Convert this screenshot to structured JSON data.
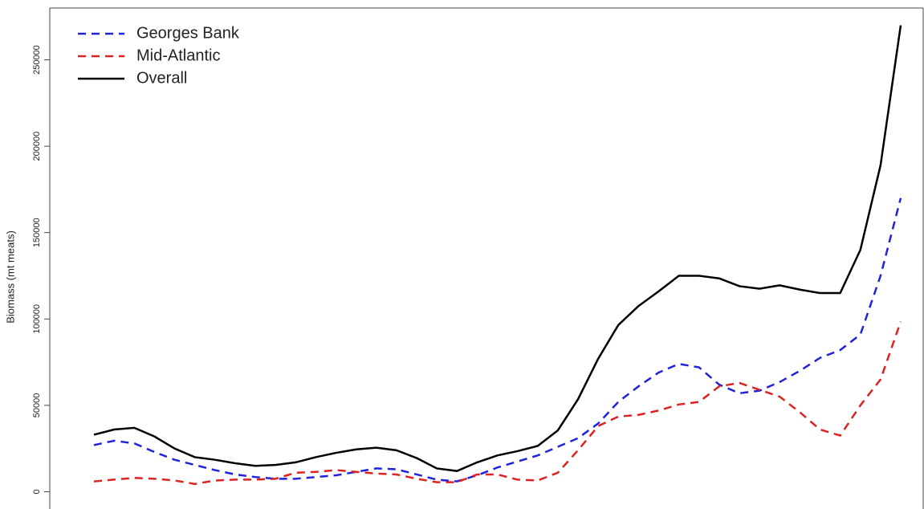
{
  "chart_data": {
    "type": "line",
    "y_label": "Biomass (mt meats)",
    "categories": [
      null,
      null,
      null,
      null,
      null,
      null,
      null,
      null,
      null,
      null,
      null,
      null,
      null,
      null,
      null,
      null,
      null,
      null,
      null,
      null,
      null,
      null,
      null,
      null,
      null,
      null,
      null,
      null,
      null,
      null,
      null,
      null,
      null,
      null,
      null,
      null,
      null,
      null,
      null,
      null,
      null
    ],
    "series": [
      {
        "name": "Georges Bank",
        "color": "#2222dd",
        "dash": true,
        "values": [
          27000,
          29500,
          28000,
          23000,
          18500,
          15500,
          12500,
          10000,
          8500,
          7500,
          7500,
          8500,
          9500,
          11500,
          13500,
          13000,
          10000,
          7000,
          6000,
          9500,
          14000,
          17500,
          21000,
          26000,
          31000,
          39500,
          52000,
          61000,
          69000,
          74000,
          72000,
          62000,
          57000,
          58500,
          63500,
          70000,
          77500,
          82000,
          91000,
          125000,
          170000
        ]
      },
      {
        "name": "Mid-Atlantic",
        "color": "#dd2222",
        "dash": true,
        "values": [
          6000,
          7000,
          8000,
          7500,
          6500,
          4500,
          6500,
          7000,
          7000,
          7500,
          11000,
          11500,
          12500,
          11500,
          10500,
          10000,
          7500,
          5500,
          5500,
          10000,
          10000,
          7000,
          6500,
          11000,
          24000,
          38000,
          43500,
          44500,
          47000,
          50500,
          52000,
          61000,
          63000,
          59000,
          55000,
          46000,
          36000,
          32500,
          50000,
          65000,
          98500
        ]
      },
      {
        "name": "Overall",
        "color": "#000000",
        "dash": false,
        "values": [
          33000,
          36000,
          37000,
          32000,
          25000,
          20000,
          18500,
          16500,
          15000,
          15500,
          17000,
          20000,
          22500,
          24500,
          25500,
          24000,
          19500,
          13500,
          12000,
          17000,
          21000,
          23500,
          26500,
          35500,
          53500,
          77000,
          96500,
          107500,
          116000,
          125000,
          125000,
          123500,
          119000,
          117500,
          119500,
          117000,
          115000,
          115000,
          140000,
          189000,
          270000
        ]
      }
    ],
    "ylim": [
      -10000,
      280000
    ],
    "yticks": [
      0,
      50000,
      100000,
      150000,
      200000,
      250000
    ],
    "legend": "top-left"
  }
}
